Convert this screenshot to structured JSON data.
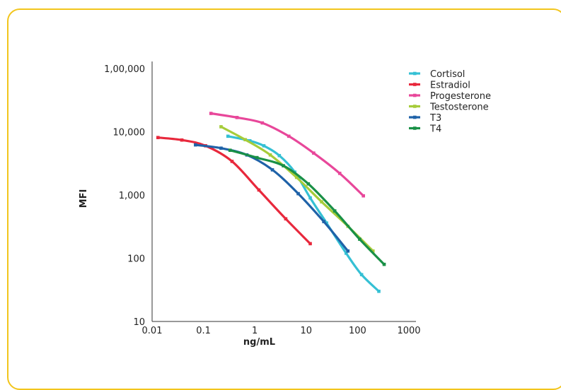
{
  "chart_data": {
    "type": "line",
    "title": "",
    "xlabel": "ng/mL",
    "ylabel": "MFI",
    "x_scale": "log",
    "y_scale": "log",
    "xlim": [
      0.01,
      1000
    ],
    "ylim": [
      10,
      100000
    ],
    "x_ticks": [
      "0.01",
      "0.1",
      "1",
      "10",
      "100",
      "1000"
    ],
    "y_ticks": [
      "10",
      "100",
      "1,000",
      "10,000",
      "1,00,000"
    ],
    "grid": false,
    "legend_position": "top-right",
    "series": [
      {
        "name": "Cortisol",
        "color": "#35c0d4",
        "x": [
          0.3,
          0.8,
          1.5,
          3,
          6,
          12,
          25,
          60,
          120,
          260
        ],
        "y": [
          8500,
          7200,
          6000,
          4200,
          2300,
          900,
          360,
          120,
          55,
          30
        ]
      },
      {
        "name": "Estradiol",
        "color": "#e8283c",
        "x": [
          0.013,
          0.038,
          0.11,
          0.36,
          1.2,
          4,
          12
        ],
        "y": [
          8100,
          7400,
          6000,
          3400,
          1200,
          420,
          170
        ]
      },
      {
        "name": "Progesterone",
        "color": "#e8479a",
        "x": [
          0.14,
          0.45,
          1.4,
          4.6,
          14,
          45,
          130
        ],
        "y": [
          19500,
          16800,
          13800,
          8500,
          4600,
          2200,
          970
        ]
      },
      {
        "name": "Testosterone",
        "color": "#a6cc3a",
        "x": [
          0.22,
          0.65,
          2,
          6.5,
          20,
          65,
          200
        ],
        "y": [
          12000,
          7500,
          4300,
          1900,
          780,
          320,
          130
        ]
      },
      {
        "name": "T3",
        "color": "#1f62a8",
        "x": [
          0.07,
          0.22,
          0.7,
          2.2,
          7,
          22,
          65
        ],
        "y": [
          6200,
          5500,
          4300,
          2500,
          1050,
          380,
          130
        ]
      },
      {
        "name": "T4",
        "color": "#199046",
        "x": [
          0.33,
          1.1,
          3.6,
          11,
          36,
          110,
          330
        ],
        "y": [
          5100,
          3900,
          2900,
          1500,
          560,
          200,
          80
        ]
      }
    ]
  }
}
